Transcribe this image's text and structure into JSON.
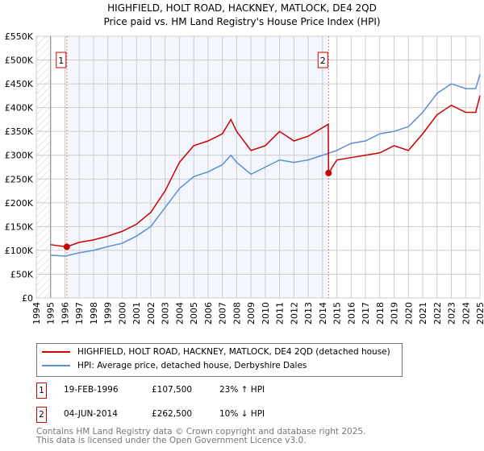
{
  "chart_data": {
    "type": "line",
    "title": "HIGHFIELD, HOLT ROAD, HACKNEY, MATLOCK, DE4 2QD",
    "subtitle": "Price paid vs. HM Land Registry's House Price Index (HPI)",
    "xlim": [
      1994,
      2025
    ],
    "ylim": [
      0,
      550000
    ],
    "x_ticks": [
      "1994",
      "1995",
      "1996",
      "1997",
      "1998",
      "1999",
      "2000",
      "2001",
      "2002",
      "2003",
      "2004",
      "2005",
      "2006",
      "2007",
      "2008",
      "2009",
      "2010",
      "2011",
      "2012",
      "2013",
      "2014",
      "2015",
      "2016",
      "2017",
      "2018",
      "2019",
      "2020",
      "2021",
      "2022",
      "2023",
      "2024",
      "2025"
    ],
    "y_ticks": [
      {
        "v": 0,
        "label": "£0"
      },
      {
        "v": 50000,
        "label": "£50K"
      },
      {
        "v": 100000,
        "label": "£100K"
      },
      {
        "v": 150000,
        "label": "£150K"
      },
      {
        "v": 200000,
        "label": "£200K"
      },
      {
        "v": 250000,
        "label": "£250K"
      },
      {
        "v": 300000,
        "label": "£300K"
      },
      {
        "v": 350000,
        "label": "£350K"
      },
      {
        "v": 400000,
        "label": "£400K"
      },
      {
        "v": 450000,
        "label": "£450K"
      },
      {
        "v": 500000,
        "label": "£500K"
      },
      {
        "v": 550000,
        "label": "£550K"
      }
    ],
    "series": [
      {
        "name": "HIGHFIELD, HOLT ROAD, HACKNEY, MATLOCK, DE4 2QD (detached house)",
        "color": "#cc0000",
        "x": [
          1995,
          1996.13,
          1997,
          1998,
          1999,
          2000,
          2001,
          2002,
          2003,
          2004,
          2005,
          2006,
          2007,
          2007.6,
          2008,
          2009,
          2010,
          2011,
          2012,
          2013,
          2014.4,
          2014.42,
          2015,
          2016,
          2017,
          2018,
          2019,
          2020,
          2021,
          2022,
          2023,
          2024,
          2024.7,
          2025
        ],
        "y": [
          112000,
          107500,
          117000,
          122000,
          130000,
          140000,
          155000,
          180000,
          225000,
          285000,
          320000,
          330000,
          345000,
          375000,
          350000,
          310000,
          320000,
          350000,
          330000,
          340000,
          365000,
          262500,
          290000,
          295000,
          300000,
          305000,
          320000,
          310000,
          345000,
          385000,
          405000,
          390000,
          390000,
          425000
        ]
      },
      {
        "name": "HPI: Average price, detached house, Derbyshire Dales",
        "color": "#5b8fd4",
        "x": [
          1995,
          1996,
          1997,
          1998,
          1999,
          2000,
          2001,
          2002,
          2003,
          2004,
          2005,
          2006,
          2007,
          2007.6,
          2008,
          2009,
          2010,
          2011,
          2012,
          2013,
          2014,
          2015,
          2016,
          2017,
          2018,
          2019,
          2020,
          2021,
          2022,
          2023,
          2024,
          2024.7,
          2025
        ],
        "y": [
          90000,
          88000,
          95000,
          100000,
          108000,
          115000,
          130000,
          150000,
          190000,
          230000,
          255000,
          265000,
          280000,
          300000,
          285000,
          260000,
          275000,
          290000,
          285000,
          290000,
          300000,
          310000,
          325000,
          330000,
          345000,
          350000,
          360000,
          390000,
          430000,
          450000,
          440000,
          440000,
          470000
        ]
      }
    ],
    "annotations": [
      {
        "label": "1",
        "x": 1996.13,
        "y": 107500
      },
      {
        "label": "2",
        "x": 2014.42,
        "y": 262500
      }
    ]
  },
  "legend": {
    "red": "HIGHFIELD, HOLT ROAD, HACKNEY, MATLOCK, DE4 2QD (detached house)",
    "blue": "HPI: Average price, detached house, Derbyshire Dales"
  },
  "sales": [
    {
      "num": "1",
      "date": "19-FEB-1996",
      "price": "£107,500",
      "hpi": "23% ↑ HPI"
    },
    {
      "num": "2",
      "date": "04-JUN-2014",
      "price": "£262,500",
      "hpi": "10% ↓ HPI"
    }
  ],
  "footer": [
    "Contains HM Land Registry data © Crown copyright and database right 2025.",
    "This data is licensed under the Open Government Licence v3.0."
  ]
}
